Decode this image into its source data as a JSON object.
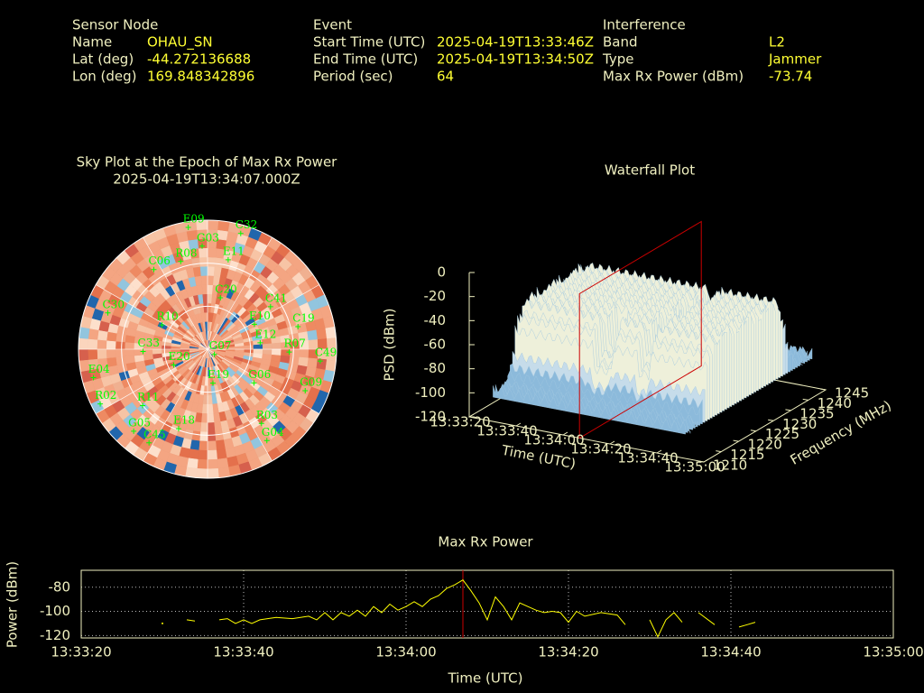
{
  "header": {
    "sensor": {
      "title": "Sensor Node",
      "rows": [
        [
          "Name",
          "OHAU_SN"
        ],
        [
          "Lat (deg)",
          "-44.272136688"
        ],
        [
          "Lon (deg)",
          "169.848342896"
        ]
      ]
    },
    "event": {
      "title": "Event",
      "rows": [
        [
          "Start Time (UTC)",
          "2025-04-19T13:33:46Z"
        ],
        [
          "End Time (UTC)",
          "2025-04-19T13:34:50Z"
        ],
        [
          "Period (sec)",
          "64"
        ]
      ]
    },
    "interference": {
      "title": "Interference",
      "rows": [
        [
          "Band",
          "L2"
        ],
        [
          "Type",
          "Jammer"
        ],
        [
          "Max Rx Power (dBm)",
          "-73.74"
        ]
      ]
    }
  },
  "chart_data": [
    {
      "type": "polar",
      "title": "Sky Plot at the Epoch of Max Rx Power",
      "subtitle": "2025-04-19T13:34:07.000Z",
      "color": "#00ff00",
      "rlim": [
        90,
        0
      ],
      "rticks": [
        0,
        30,
        60
      ],
      "categories": [
        "C32",
        "E11",
        "C41",
        "E10",
        "C19",
        "E12",
        "R07",
        "C49",
        "G06",
        "G09",
        "R03",
        "G04",
        "C45",
        "E18",
        "G05",
        "R11",
        "R02",
        "E19",
        "E20",
        "G07",
        "R10",
        "C30",
        "C20",
        "C06",
        "R08",
        "E09",
        "G03",
        "E04",
        "C33"
      ],
      "azimuth": [
        16,
        13,
        56,
        62,
        76,
        83,
        92,
        96,
        126,
        113,
        144,
        147,
        212,
        200,
        222,
        229,
        243,
        171,
        245,
        127,
        298,
        290,
        14,
        326,
        343,
        351,
        357,
        256,
        268
      ],
      "elevation": [
        6,
        26,
        37,
        53,
        25,
        53,
        33,
        11,
        50,
        16,
        26,
        14,
        13,
        31,
        13,
        30,
        6,
        66,
        64,
        84,
        54,
        16,
        53,
        23,
        26,
        4,
        18,
        8,
        45
      ]
    },
    {
      "type": "surface3d",
      "title": "Waterfall Plot",
      "xlabel": "Time (UTC)",
      "ylabel": "Frequency (MHz)",
      "zlabel": "PSD (dBm)",
      "xlim": [
        "13:33:20",
        "13:35:00"
      ],
      "xticks": [
        "13:33:20",
        "13:33:40",
        "13:34:00",
        "13:34:20",
        "13:34:40",
        "13:35:00"
      ],
      "ylim": [
        1210,
        1245
      ],
      "yticks": [
        1210,
        1215,
        1220,
        1225,
        1230,
        1235,
        1240,
        1245
      ],
      "zlim": [
        -120,
        0
      ],
      "zticks": [
        0,
        -20,
        -40,
        -60,
        -80,
        -100,
        -120
      ],
      "marker_x": "13:34:07",
      "marker_color": "#cc0000"
    },
    {
      "type": "line",
      "title": "Max Rx Power",
      "xlabel": "Time (UTC)",
      "ylabel": "Power (dBm)",
      "color": "#ffff00",
      "grid": true,
      "xlim": [
        "13:33:20",
        "13:35:00"
      ],
      "xticks": [
        "13:33:20",
        "13:33:40",
        "13:34:00",
        "13:34:20",
        "13:34:40",
        "13:35:00"
      ],
      "ylim": [
        -122,
        -66
      ],
      "yticks": [
        -120,
        -100,
        -80
      ],
      "marker_x": "13:34:07",
      "marker_color": "#cc0000",
      "x": [
        "13:33:30",
        "13:33:31",
        "13:33:33",
        "13:33:34",
        "13:33:35",
        "13:33:37",
        "13:33:38",
        "13:33:39",
        "13:33:40",
        "13:33:41",
        "13:33:42",
        "13:33:44",
        "13:33:46",
        "13:33:48",
        "13:33:49",
        "13:33:50",
        "13:33:51",
        "13:33:52",
        "13:33:53",
        "13:33:54",
        "13:33:55",
        "13:33:56",
        "13:33:57",
        "13:33:58",
        "13:33:59",
        "13:34:00",
        "13:34:01",
        "13:34:02",
        "13:34:03",
        "13:34:04",
        "13:34:05",
        "13:34:06",
        "13:34:07",
        "13:34:08",
        "13:34:09",
        "13:34:10",
        "13:34:11",
        "13:34:12",
        "13:34:13",
        "13:34:14",
        "13:34:15",
        "13:34:16",
        "13:34:17",
        "13:34:18",
        "13:34:19",
        "13:34:20",
        "13:34:21",
        "13:34:22",
        "13:34:24",
        "13:34:26",
        "13:34:27",
        "13:34:28",
        "13:34:30",
        "13:34:31",
        "13:34:32",
        "13:34:33",
        "13:34:34",
        "13:34:35",
        "13:34:36",
        "13:34:38",
        "13:34:39",
        "13:34:41",
        "13:34:42",
        "13:34:43"
      ],
      "values": [
        -110,
        null,
        -107,
        -108,
        null,
        -107,
        -106,
        -110,
        -107,
        -110,
        -107,
        -105,
        -106,
        -104,
        -107,
        -101,
        -107,
        -101,
        -104,
        -99,
        -104,
        -96,
        -101,
        -94,
        -99,
        -96,
        -92,
        -96,
        -90,
        -87,
        -81,
        -78,
        -74,
        -83,
        -93,
        -107,
        -88,
        -96,
        -107,
        -93,
        -96,
        -99,
        -101,
        -100,
        -101,
        -109,
        -100,
        -104,
        -101,
        -103,
        -111,
        null,
        -107,
        -121,
        -107,
        -101,
        -109,
        null,
        -101,
        -111,
        null,
        -113,
        -111,
        -109
      ]
    }
  ]
}
